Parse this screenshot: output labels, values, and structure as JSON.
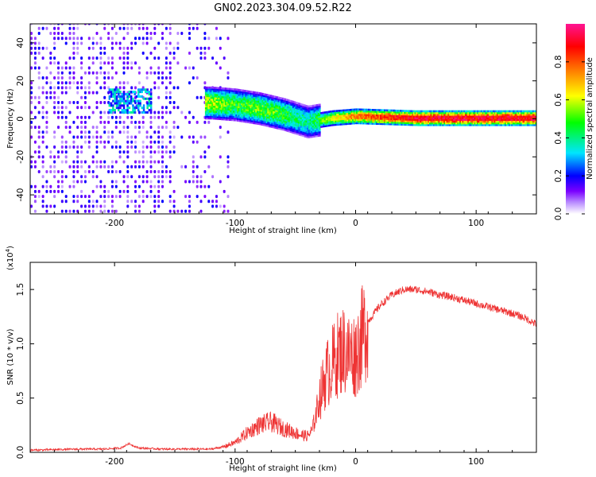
{
  "title": "GN02.2023.304.09.52.R22",
  "chart_data": [
    {
      "type": "heatmap",
      "xlabel": "Height of straight line (km)",
      "ylabel": "Frequency (Hz)",
      "xlim": [
        -270,
        150
      ],
      "ylim": [
        -50,
        50
      ],
      "xticks": [
        -200,
        -100,
        0,
        100
      ],
      "yticks": [
        40,
        20,
        0,
        -20,
        -40
      ],
      "colorbar": {
        "label": "Normalized spectral amplitude",
        "range": [
          0,
          1
        ],
        "ticks": [
          "0.0",
          "0.2",
          "0.4",
          "0.6",
          "0.8"
        ],
        "colors": [
          "#ffffff",
          "#7a00ff",
          "#0000ff",
          "#00e5ff",
          "#00ff00",
          "#ffff00",
          "#ff8000",
          "#ff0000",
          "#ff0080"
        ]
      },
      "ridge": {
        "description_points": [
          {
            "x": -120,
            "freq": 8,
            "amp": 0.6
          },
          {
            "x": -100,
            "freq": 7,
            "amp": 0.5
          },
          {
            "x": -80,
            "freq": 5,
            "amp": 0.55
          },
          {
            "x": -60,
            "freq": 2,
            "amp": 0.5
          },
          {
            "x": -40,
            "freq": -2,
            "amp": 0.4
          },
          {
            "x": -20,
            "freq": 0,
            "amp": 0.6
          },
          {
            "x": 0,
            "freq": 1,
            "amp": 0.75
          },
          {
            "x": 50,
            "freq": 0,
            "amp": 0.9
          },
          {
            "x": 100,
            "freq": 0,
            "amp": 0.9
          },
          {
            "x": 150,
            "freq": 0,
            "amp": 0.9
          }
        ],
        "noise_region_x": [
          -270,
          -105
        ]
      }
    },
    {
      "type": "line",
      "xlabel": "Height of straight line (km)",
      "ylabel": "SNR (10 * v/v)",
      "multiplier": "(x10",
      "multiplier_exp": "4",
      "xlim": [
        -270,
        150
      ],
      "ylim": [
        0,
        17500
      ],
      "xticks": [
        -200,
        -100,
        0,
        100
      ],
      "yticks": [
        "0.0",
        "0.5",
        "1.0",
        "1.5"
      ],
      "series": [
        {
          "color": "#ee3333",
          "x": [
            -270,
            -250,
            -230,
            -210,
            -195,
            -188,
            -180,
            -160,
            -140,
            -120,
            -110,
            -100,
            -90,
            -80,
            -70,
            -60,
            -50,
            -45,
            -40,
            -36,
            -30,
            -25,
            -20,
            -15,
            -10,
            -5,
            0,
            5,
            10,
            20,
            30,
            40,
            50,
            60,
            70,
            80,
            90,
            100,
            110,
            120,
            130,
            140,
            150
          ],
          "y": [
            200,
            250,
            300,
            300,
            400,
            800,
            400,
            300,
            300,
            300,
            500,
            900,
            1800,
            2500,
            2800,
            2200,
            1800,
            1600,
            1500,
            2000,
            5000,
            7000,
            8000,
            9000,
            9500,
            9000,
            9000,
            10500,
            12000,
            13500,
            14500,
            15000,
            15000,
            14800,
            14500,
            14300,
            14000,
            13700,
            13400,
            13100,
            12800,
            12400,
            11800
          ]
        }
      ]
    }
  ]
}
